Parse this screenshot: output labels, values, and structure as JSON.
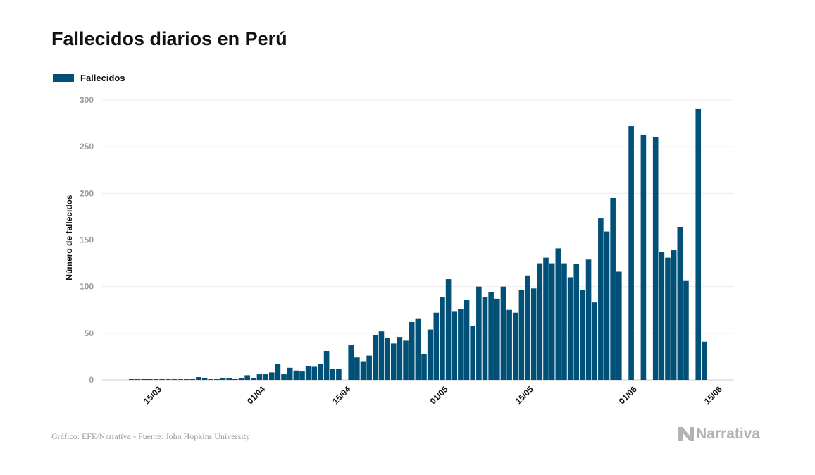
{
  "title": "Fallecidos diarios en Perú",
  "legend": {
    "label": "Fallecidos",
    "color": "#005077"
  },
  "footer": {
    "source": "Gráfico: EFE/Narrativa - Fuente: John Hopkins University",
    "brand": "Narrativa"
  },
  "chart_data": {
    "type": "bar",
    "ylabel": "Número de fallecidos",
    "ylim": [
      0,
      300
    ],
    "yticks": [
      0,
      50,
      100,
      150,
      200,
      250,
      300
    ],
    "grid": true,
    "legend_position": "top-left",
    "series": [
      {
        "name": "Fallecidos",
        "color": "#005077"
      }
    ],
    "x_ticks": [
      {
        "label": "15/03",
        "index": 5
      },
      {
        "label": "01/04",
        "index": 22
      },
      {
        "label": "15/04",
        "index": 36
      },
      {
        "label": "01/05",
        "index": 52
      },
      {
        "label": "15/05",
        "index": 66
      },
      {
        "label": "01/06",
        "index": 83
      },
      {
        "label": "15/06",
        "index": 97
      }
    ],
    "values": [
      0,
      0,
      0,
      0,
      0,
      0,
      0,
      0,
      0,
      0,
      0,
      3,
      2,
      0,
      0,
      2,
      2,
      0,
      2,
      5,
      2,
      6,
      6,
      8,
      17,
      6,
      13,
      10,
      9,
      15,
      14,
      17,
      31,
      12,
      12,
      null,
      37,
      24,
      20,
      26,
      48,
      52,
      45,
      39,
      46,
      42,
      62,
      66,
      28,
      54,
      72,
      89,
      108,
      73,
      76,
      86,
      58,
      100,
      89,
      94,
      87,
      100,
      75,
      72,
      96,
      112,
      98,
      125,
      131,
      125,
      141,
      125,
      110,
      124,
      96,
      129,
      83,
      173,
      159,
      195,
      116,
      null,
      272,
      null,
      263,
      null,
      260,
      137,
      131,
      139,
      164,
      106,
      null,
      291,
      41
    ]
  }
}
